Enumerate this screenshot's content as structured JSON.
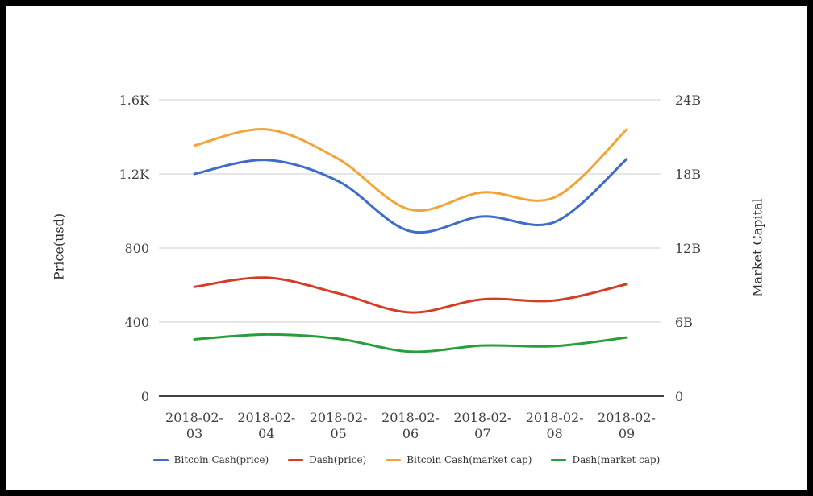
{
  "chart_data": {
    "type": "line",
    "categories": [
      "2018-02-03",
      "2018-02-04",
      "2018-02-05",
      "2018-02-06",
      "2018-02-07",
      "2018-02-08",
      "2018-02-09"
    ],
    "series": [
      {
        "name": "Bitcoin Cash(price)",
        "axis": "left",
        "color": "#3e6cc8",
        "values": [
          1200,
          1275,
          1160,
          890,
          970,
          940,
          1280
        ]
      },
      {
        "name": "Dash(price)",
        "axis": "left",
        "color": "#d33d26",
        "values": [
          590,
          640,
          555,
          452,
          523,
          517,
          605
        ]
      },
      {
        "name": "Bitcoin Cash(market cap)",
        "axis": "right",
        "color": "#f2a43a",
        "values": [
          20.3,
          21.6,
          19.2,
          15.1,
          16.5,
          16.1,
          21.6
        ]
      },
      {
        "name": "Dash(market cap)",
        "axis": "right",
        "color": "#279d3b",
        "values": [
          4.6,
          5.0,
          4.65,
          3.6,
          4.1,
          4.05,
          4.75
        ]
      }
    ],
    "left_axis": {
      "title": "Price(usd)",
      "min": 0,
      "max": 1600,
      "ticks": [
        "0",
        "400",
        "800",
        "1.2K",
        "1.6K"
      ]
    },
    "right_axis": {
      "title": "Market Capital",
      "min": 0,
      "max": 24,
      "ticks": [
        "0",
        "6B",
        "12B",
        "18B",
        "24B"
      ]
    },
    "legend_position": "bottom",
    "grid": true,
    "colors": {
      "gridline": "#cccccc",
      "axis_line": "#424242",
      "tick_text": "#414141",
      "legend_text": "#333333"
    }
  }
}
